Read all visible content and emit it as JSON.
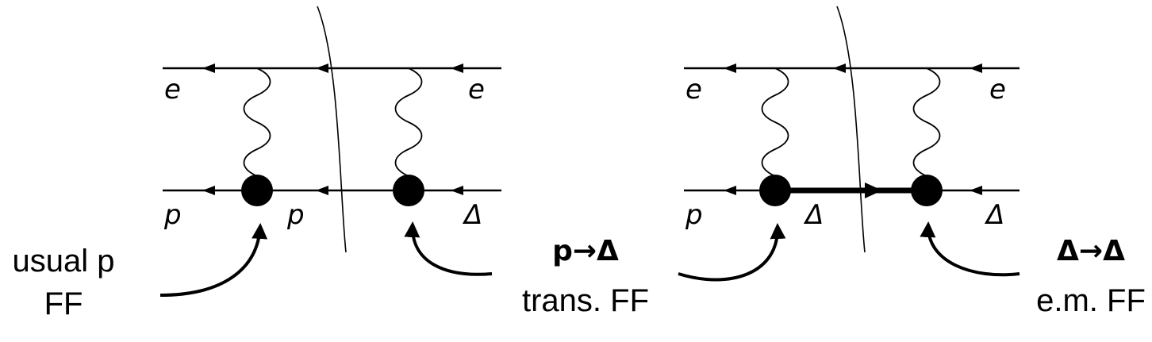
{
  "left_diagram": {
    "label_e_in": "e",
    "label_e_out": "e",
    "label_p_in": "p",
    "label_p_mid": "p",
    "label_delta_out": "Δ"
  },
  "right_diagram": {
    "label_e_in": "e",
    "label_e_out": "e",
    "label_p_in": "p",
    "label_delta_mid": "Δ",
    "label_delta_out": "Δ"
  },
  "annotations": {
    "usual_p_line1": "usual p",
    "usual_p_line2": "FF",
    "trans_line1": "p→Δ",
    "trans_line2": "trans. FF",
    "em_line1": "Δ→Δ",
    "em_line2": "e.m. FF"
  }
}
